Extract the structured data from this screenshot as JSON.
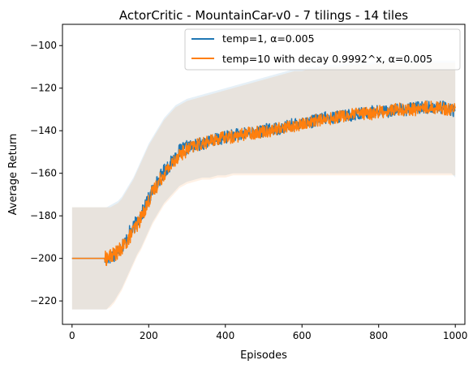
{
  "chart_data": {
    "type": "line",
    "title": "ActorCritic - MountainCar-v0 - 7 tilings - 14 tiles",
    "xlabel": "Episodes",
    "ylabel": "Average Return",
    "xlim": [
      -25,
      1025
    ],
    "ylim": [
      -231,
      -90
    ],
    "xticks": [
      0,
      200,
      400,
      600,
      800,
      1000
    ],
    "yticks": [
      -220,
      -200,
      -180,
      -160,
      -140,
      -120,
      -100
    ],
    "grid": false,
    "legend_position": "upper-right",
    "series": [
      {
        "name": "temp=1, α=0.005",
        "color": "#1f77b4",
        "band_color": "#1f77b4",
        "x": [
          0,
          50,
          90,
          100,
          110,
          120,
          130,
          140,
          150,
          160,
          170,
          180,
          190,
          200,
          210,
          220,
          230,
          240,
          250,
          260,
          270,
          280,
          290,
          300,
          320,
          340,
          360,
          380,
          400,
          420,
          440,
          460,
          480,
          500,
          520,
          540,
          560,
          580,
          600,
          620,
          640,
          660,
          680,
          700,
          720,
          740,
          760,
          780,
          800,
          820,
          840,
          860,
          880,
          900,
          920,
          940,
          960,
          980,
          990,
          1000
        ],
        "mean": [
          -200,
          -200,
          -200,
          -199,
          -198,
          -196,
          -194,
          -192,
          -188,
          -186,
          -182,
          -180,
          -176,
          -172,
          -168,
          -165,
          -162,
          -159,
          -157,
          -155,
          -152,
          -150,
          -149,
          -148,
          -147,
          -146,
          -145,
          -144,
          -143,
          -142,
          -142,
          -141,
          -141,
          -140,
          -139,
          -139,
          -138,
          -137,
          -136,
          -136,
          -135,
          -134,
          -134,
          -133,
          -133,
          -132,
          -132,
          -131,
          -131,
          -131,
          -130,
          -130,
          -130,
          -129,
          -129,
          -129,
          -129,
          -129,
          -130,
          -131
        ],
        "band_lower": [
          -224,
          -224,
          -224,
          -222,
          -220,
          -217,
          -214,
          -210,
          -206,
          -202,
          -198,
          -195,
          -191,
          -187,
          -183,
          -180,
          -177,
          -174,
          -172,
          -170,
          -168,
          -166,
          -165,
          -164,
          -163,
          -162,
          -162,
          -161,
          -161,
          -160,
          -160,
          -160,
          -160,
          -160,
          -160,
          -160,
          -160,
          -160,
          -160,
          -160,
          -160,
          -160,
          -160,
          -160,
          -160,
          -160,
          -160,
          -160,
          -160,
          -160,
          -160,
          -160,
          -160,
          -160,
          -160,
          -160,
          -160,
          -160,
          -160,
          -162
        ],
        "band_upper": [
          -176,
          -176,
          -176,
          -175,
          -174,
          -173,
          -171,
          -168,
          -165,
          -162,
          -158,
          -154,
          -150,
          -146,
          -143,
          -140,
          -137,
          -134,
          -132,
          -130,
          -128,
          -127,
          -126,
          -125,
          -124,
          -123,
          -122,
          -121,
          -120,
          -119,
          -118,
          -117,
          -116,
          -115,
          -114,
          -113,
          -112,
          -111,
          -111,
          -110,
          -110,
          -109,
          -109,
          -109,
          -108,
          -108,
          -108,
          -108,
          -107,
          -107,
          -107,
          -107,
          -107,
          -107,
          -107,
          -107,
          -107,
          -107,
          -107,
          -107
        ]
      },
      {
        "name": "temp=10 with decay 0.9992^x, α=0.005",
        "color": "#ff7f0e",
        "band_color": "#ff7f0e",
        "x": [
          0,
          50,
          90,
          100,
          110,
          120,
          130,
          140,
          150,
          160,
          170,
          180,
          190,
          200,
          210,
          220,
          230,
          240,
          250,
          260,
          270,
          280,
          290,
          300,
          320,
          340,
          360,
          380,
          400,
          420,
          440,
          460,
          480,
          500,
          520,
          540,
          560,
          580,
          600,
          620,
          640,
          660,
          680,
          700,
          720,
          740,
          760,
          780,
          800,
          820,
          840,
          860,
          880,
          900,
          920,
          940,
          960,
          980,
          990,
          1000
        ],
        "mean": [
          -200,
          -200,
          -200,
          -199,
          -198,
          -197,
          -195,
          -193,
          -190,
          -187,
          -184,
          -181,
          -177,
          -173,
          -169,
          -166,
          -163,
          -160,
          -158,
          -156,
          -153,
          -151,
          -150,
          -149,
          -147,
          -146,
          -145,
          -144,
          -143,
          -143,
          -142,
          -141,
          -141,
          -140,
          -140,
          -139,
          -138,
          -138,
          -137,
          -136,
          -135,
          -135,
          -134,
          -133,
          -133,
          -132,
          -132,
          -132,
          -131,
          -131,
          -130,
          -130,
          -130,
          -130,
          -129,
          -129,
          -129,
          -130,
          -130,
          -129
        ],
        "band_lower": [
          -224,
          -224,
          -224,
          -223,
          -221,
          -218,
          -215,
          -211,
          -207,
          -203,
          -199,
          -196,
          -192,
          -188,
          -184,
          -181,
          -178,
          -175,
          -173,
          -171,
          -169,
          -167,
          -166,
          -165,
          -164,
          -163,
          -163,
          -162,
          -162,
          -161,
          -161,
          -161,
          -161,
          -161,
          -161,
          -161,
          -161,
          -161,
          -161,
          -161,
          -161,
          -161,
          -161,
          -161,
          -161,
          -161,
          -161,
          -161,
          -161,
          -161,
          -161,
          -161,
          -161,
          -161,
          -161,
          -161,
          -161,
          -161,
          -161,
          -161
        ],
        "band_upper": [
          -176,
          -176,
          -176,
          -176,
          -175,
          -174,
          -172,
          -169,
          -166,
          -163,
          -159,
          -155,
          -151,
          -147,
          -144,
          -141,
          -138,
          -135,
          -133,
          -131,
          -129,
          -128,
          -127,
          -126,
          -125,
          -124,
          -123,
          -122,
          -121,
          -120,
          -119,
          -118,
          -117,
          -116,
          -115,
          -114,
          -113,
          -112,
          -112,
          -111,
          -111,
          -110,
          -110,
          -110,
          -109,
          -109,
          -109,
          -109,
          -108,
          -108,
          -108,
          -108,
          -108,
          -108,
          -108,
          -108,
          -108,
          -108,
          -108,
          -108
        ]
      }
    ]
  }
}
